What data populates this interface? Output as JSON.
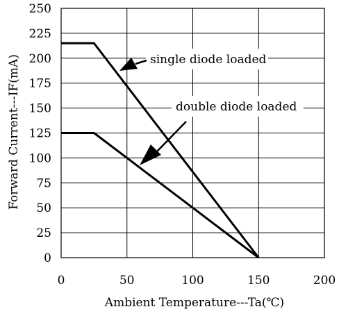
{
  "chart_data": {
    "type": "line",
    "xlabel": "Ambient Temperature---Ta(℃)",
    "ylabel": "Forward Current---IF(mA)",
    "xlim": [
      0,
      200
    ],
    "ylim": [
      0,
      250
    ],
    "x_ticks": [
      0,
      50,
      100,
      150,
      200
    ],
    "y_ticks": [
      0,
      25,
      50,
      75,
      100,
      125,
      150,
      175,
      200,
      225,
      250
    ],
    "x_tick_labels": [
      "0",
      "50",
      "100",
      "150",
      "200"
    ],
    "y_tick_labels": [
      "0",
      "25",
      "50",
      "75",
      "100",
      "125",
      "150",
      "175",
      "200",
      "225",
      "250"
    ],
    "grid": true,
    "legend": "none",
    "series": [
      {
        "x": [
          0,
          25,
          150
        ],
        "y": [
          215,
          215,
          0
        ]
      },
      {
        "x": [
          0,
          25,
          150
        ],
        "y": [
          125,
          125,
          0
        ]
      }
    ],
    "annotations": [
      {
        "text": "single diode loaded"
      },
      {
        "text": "double diode loaded"
      }
    ]
  }
}
